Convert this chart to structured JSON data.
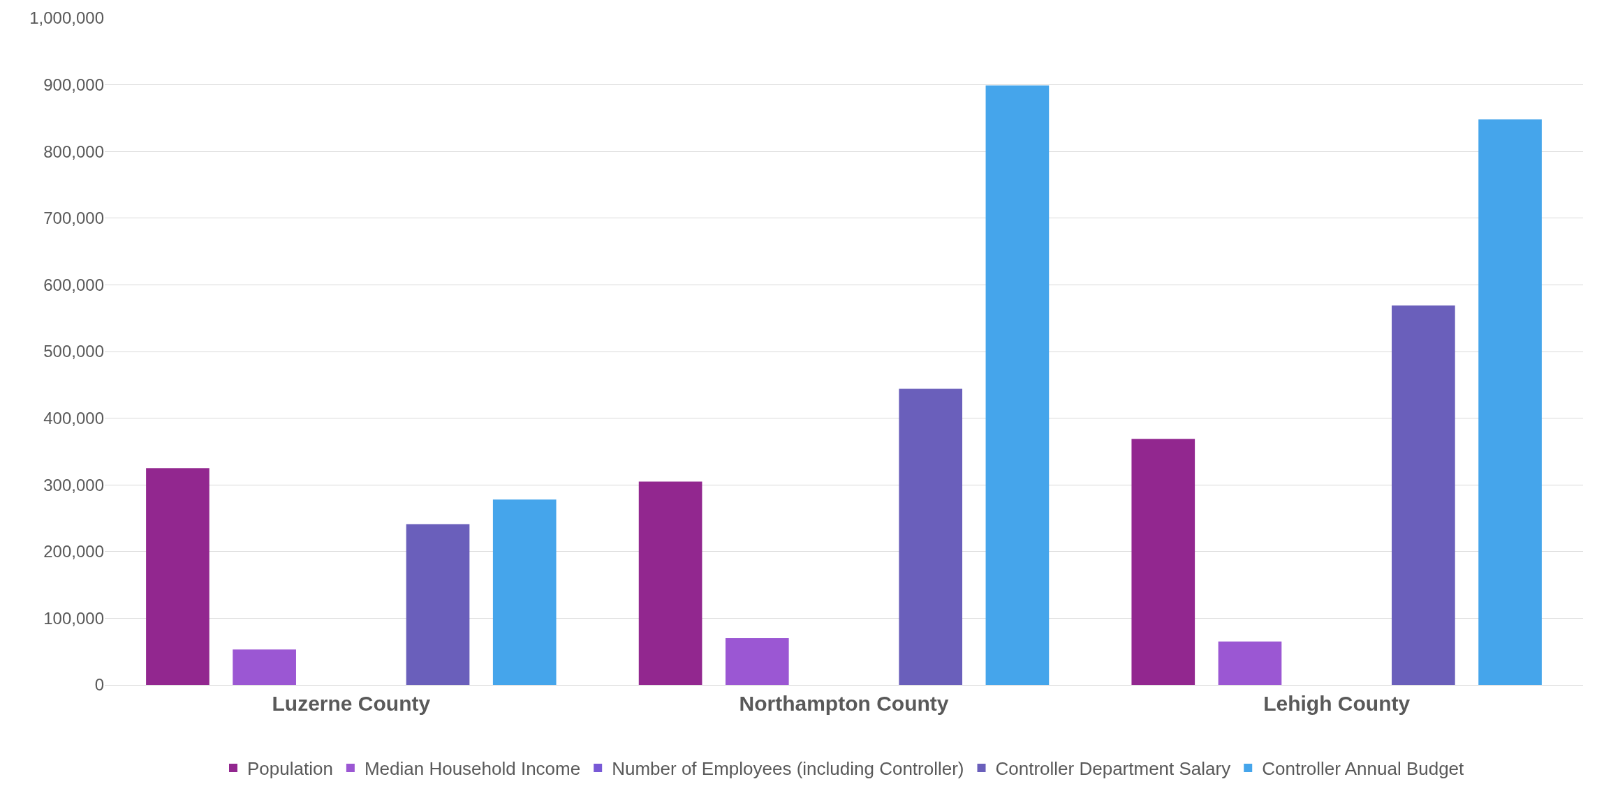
{
  "chart_data": {
    "type": "bar",
    "categories": [
      "Luzerne County",
      "Northampton County",
      "Lehigh County"
    ],
    "series": [
      {
        "name": "Population",
        "color": "#92278f",
        "values": [
          325000,
          305000,
          369000
        ]
      },
      {
        "name": "Median Household Income",
        "color": "#9b57d3",
        "values": [
          53000,
          70000,
          65000
        ]
      },
      {
        "name": "Number of Employees (including Controller)",
        "color": "#7859d6",
        "values": [
          0,
          0,
          0
        ]
      },
      {
        "name": "Controller Department Salary",
        "color": "#6a5fbb",
        "values": [
          241000,
          444000,
          569000
        ]
      },
      {
        "name": "Controller Annual Budget",
        "color": "#45a5eb",
        "values": [
          278000,
          899000,
          848000
        ]
      }
    ],
    "ylim": [
      0,
      1000000
    ],
    "yticks": [
      {
        "value": 0,
        "label": "0"
      },
      {
        "value": 100000,
        "label": "100,000"
      },
      {
        "value": 200000,
        "label": "200,000"
      },
      {
        "value": 300000,
        "label": "300,000"
      },
      {
        "value": 400000,
        "label": "400,000"
      },
      {
        "value": 500000,
        "label": "500,000"
      },
      {
        "value": 600000,
        "label": "600,000"
      },
      {
        "value": 700000,
        "label": "700,000"
      },
      {
        "value": 800000,
        "label": "800,000"
      },
      {
        "value": 900000,
        "label": "900,000"
      },
      {
        "value": 1000000,
        "label": "1,000,000"
      }
    ],
    "grid": "y",
    "legend": "bottom"
  }
}
